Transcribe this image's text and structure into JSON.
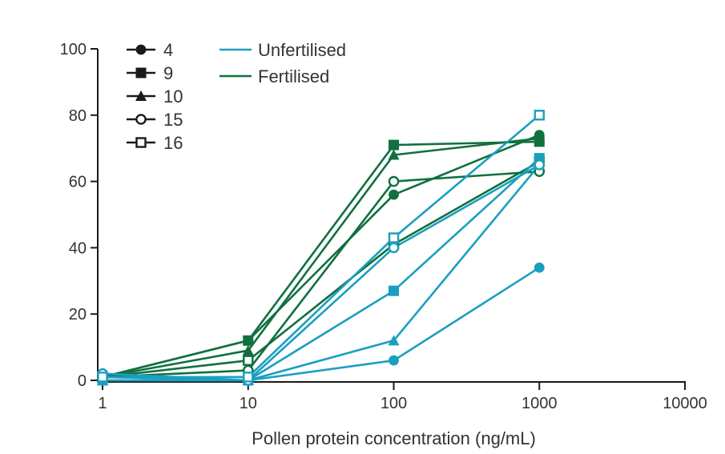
{
  "chart_data": {
    "type": "line",
    "title": "",
    "xlabel": "Pollen protein concentration (ng/mL)",
    "ylabel": "",
    "x_scale": "log",
    "x": [
      1,
      10,
      100,
      1000
    ],
    "xlim": [
      1,
      10000
    ],
    "ylim": [
      0,
      100
    ],
    "x_ticks": [
      1,
      10,
      100,
      1000,
      10000
    ],
    "x_tick_labels": [
      "1",
      "10",
      "100",
      "1000",
      "10000"
    ],
    "y_ticks": [
      0,
      20,
      40,
      60,
      80,
      100
    ],
    "y_tick_labels": [
      "0",
      "20",
      "40",
      "60",
      "80",
      "100"
    ],
    "grid": false,
    "colors": {
      "Unfertilised": "#1a9fc0",
      "Fertilised": "#10703f",
      "axis": "#1a1a1a"
    },
    "marker_legend": [
      {
        "label": "4",
        "marker": "circle-filled"
      },
      {
        "label": "9",
        "marker": "square-filled"
      },
      {
        "label": "10",
        "marker": "triangle-filled"
      },
      {
        "label": "15",
        "marker": "circle-open"
      },
      {
        "label": "16",
        "marker": "square-open"
      }
    ],
    "color_legend": [
      {
        "label": "Unfertilised",
        "group": "Unfertilised"
      },
      {
        "label": "Fertilised",
        "group": "Fertilised"
      }
    ],
    "series": [
      {
        "name": "4 Fertilised",
        "id": "4",
        "group": "Fertilised",
        "marker": "circle-filled",
        "values": [
          1,
          12,
          56,
          74
        ]
      },
      {
        "name": "9 Fertilised",
        "id": "9",
        "group": "Fertilised",
        "marker": "square-filled",
        "values": [
          1,
          12,
          71,
          72
        ]
      },
      {
        "name": "10 Fertilised",
        "id": "10",
        "group": "Fertilised",
        "marker": "triangle-filled",
        "values": [
          1,
          9,
          68,
          73
        ]
      },
      {
        "name": "15 Fertilised",
        "id": "15",
        "group": "Fertilised",
        "marker": "circle-open",
        "values": [
          1,
          3,
          60,
          63
        ]
      },
      {
        "name": "16 Fertilised",
        "id": "16",
        "group": "Fertilised",
        "marker": "square-open",
        "values": [
          1,
          6,
          41,
          66
        ]
      },
      {
        "name": "4 Unfertilised",
        "id": "4",
        "group": "Unfertilised",
        "marker": "circle-filled",
        "values": [
          1,
          0,
          6,
          34
        ]
      },
      {
        "name": "9 Unfertilised",
        "id": "9",
        "group": "Unfertilised",
        "marker": "square-filled",
        "values": [
          0,
          0,
          27,
          67
        ]
      },
      {
        "name": "10 Unfertilised",
        "id": "10",
        "group": "Unfertilised",
        "marker": "triangle-filled",
        "values": [
          0,
          0,
          12,
          65
        ]
      },
      {
        "name": "15 Unfertilised",
        "id": "15",
        "group": "Unfertilised",
        "marker": "circle-open",
        "values": [
          2,
          0,
          40,
          65
        ]
      },
      {
        "name": "16 Unfertilised",
        "id": "16",
        "group": "Unfertilised",
        "marker": "square-open",
        "values": [
          1,
          1,
          43,
          80
        ]
      }
    ]
  }
}
